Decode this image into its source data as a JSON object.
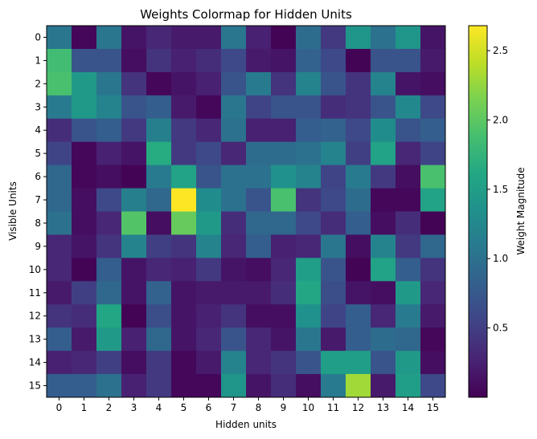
{
  "chart_data": {
    "type": "heatmap",
    "title": "Weights Colormap for Hidden Units",
    "xlabel": "Hidden units",
    "ylabel": "Visible Units",
    "x_ticks": [
      "0",
      "1",
      "2",
      "3",
      "4",
      "5",
      "6",
      "7",
      "8",
      "9",
      "10",
      "11",
      "12",
      "13",
      "14",
      "15"
    ],
    "y_ticks": [
      "0",
      "1",
      "2",
      "3",
      "4",
      "5",
      "6",
      "7",
      "8",
      "9",
      "10",
      "11",
      "12",
      "13",
      "14",
      "15"
    ],
    "colormap": "viridis",
    "vmin": 0.0,
    "vmax": 2.68,
    "colorbar": {
      "label": "Weight Magnitude",
      "ticks": [
        0.5,
        1.0,
        1.5,
        2.0,
        2.5
      ],
      "tick_labels": [
        "0.5",
        "1.0",
        "1.5",
        "2.0",
        "2.5"
      ]
    },
    "values": [
      [
        1.05,
        0.05,
        1.05,
        0.15,
        0.3,
        0.2,
        0.2,
        1.05,
        0.25,
        0.02,
        0.95,
        0.45,
        1.4,
        1.0,
        1.4,
        0.15
      ],
      [
        1.85,
        0.7,
        0.7,
        0.1,
        0.4,
        0.25,
        0.35,
        0.6,
        0.2,
        0.15,
        0.85,
        0.6,
        0.02,
        0.7,
        0.7,
        0.2
      ],
      [
        1.9,
        1.45,
        1.05,
        0.4,
        0.05,
        0.15,
        0.25,
        0.7,
        1.1,
        0.4,
        1.2,
        0.7,
        0.4,
        1.2,
        0.15,
        0.1
      ],
      [
        1.1,
        1.45,
        1.2,
        0.7,
        0.8,
        0.2,
        0.05,
        1.05,
        0.55,
        0.7,
        0.7,
        0.35,
        0.4,
        0.7,
        1.25,
        0.6
      ],
      [
        0.35,
        0.7,
        0.8,
        0.45,
        1.15,
        0.45,
        0.3,
        1.0,
        0.25,
        0.25,
        0.8,
        0.85,
        0.6,
        1.3,
        0.7,
        0.8
      ],
      [
        0.55,
        0.05,
        0.25,
        0.15,
        1.65,
        0.45,
        0.6,
        0.3,
        0.95,
        0.95,
        1.0,
        1.2,
        0.5,
        1.55,
        0.3,
        0.55
      ],
      [
        0.9,
        0.05,
        0.1,
        0.02,
        1.1,
        1.55,
        0.7,
        1.0,
        1.0,
        1.35,
        1.2,
        0.55,
        1.1,
        0.45,
        0.1,
        1.9
      ],
      [
        0.9,
        0.1,
        0.6,
        1.15,
        0.9,
        2.68,
        1.3,
        1.0,
        0.7,
        1.9,
        0.4,
        0.6,
        0.95,
        0.05,
        0.05,
        1.55
      ],
      [
        1.0,
        0.1,
        0.3,
        1.95,
        0.1,
        2.05,
        1.45,
        0.35,
        0.9,
        0.9,
        0.6,
        0.35,
        0.8,
        0.1,
        0.35,
        0.02
      ],
      [
        0.3,
        0.15,
        0.4,
        1.2,
        0.5,
        0.4,
        1.2,
        0.3,
        0.8,
        0.25,
        0.3,
        1.05,
        0.1,
        1.2,
        0.45,
        0.9
      ],
      [
        0.3,
        0.02,
        0.8,
        0.15,
        0.3,
        0.25,
        0.45,
        0.15,
        0.1,
        0.3,
        1.5,
        0.7,
        0.02,
        1.55,
        0.8,
        0.4
      ],
      [
        0.2,
        0.5,
        0.9,
        0.15,
        0.85,
        0.15,
        0.2,
        0.2,
        0.2,
        0.35,
        1.6,
        0.65,
        0.15,
        0.1,
        1.45,
        0.3
      ],
      [
        0.4,
        0.35,
        1.6,
        0.02,
        0.65,
        0.15,
        0.25,
        0.4,
        0.1,
        0.1,
        1.35,
        0.55,
        0.8,
        0.3,
        1.1,
        0.2
      ],
      [
        0.8,
        0.2,
        1.45,
        0.25,
        0.9,
        0.15,
        0.3,
        0.7,
        0.3,
        0.15,
        1.05,
        0.2,
        0.8,
        0.95,
        0.9,
        0.05
      ],
      [
        0.25,
        0.3,
        0.5,
        0.1,
        0.45,
        0.05,
        0.2,
        1.2,
        0.3,
        0.4,
        0.7,
        1.5,
        1.5,
        0.7,
        1.45,
        0.1
      ],
      [
        0.8,
        0.8,
        1.0,
        0.25,
        0.45,
        0.05,
        0.05,
        1.4,
        0.15,
        0.35,
        0.1,
        1.1,
        2.3,
        0.2,
        1.5,
        0.6
      ]
    ]
  }
}
